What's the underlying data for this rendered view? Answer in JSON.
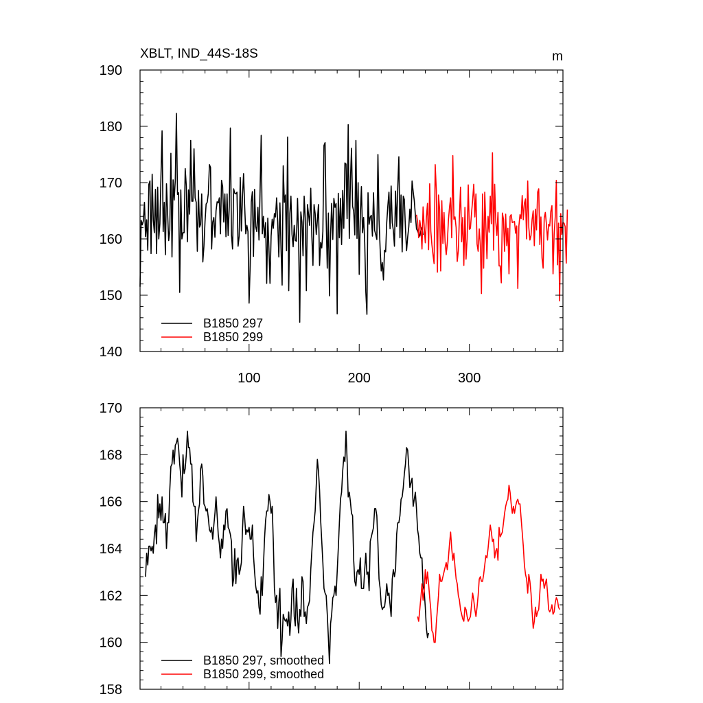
{
  "chart_data": [
    {
      "type": "line",
      "title": "XBLT, IND_44S-18S",
      "units": "m",
      "xlabel": "",
      "ylabel": "",
      "xlim": [
        1,
        385
      ],
      "ylim": [
        140,
        190
      ],
      "xticks": [
        100,
        200,
        300
      ],
      "xtick_labels": [
        "100",
        "200",
        "300"
      ],
      "yticks": [
        140,
        150,
        160,
        170,
        180,
        190
      ],
      "ytick_labels": [
        "140",
        "150",
        "160",
        "170",
        "180",
        "190"
      ],
      "legend_position": "bottom-left",
      "series": [
        {
          "name": "B1850 297",
          "color": "#000000",
          "x_start": 1,
          "values": [
            151.5,
            163.3,
            162.5,
            163.2,
            166.5,
            160.4,
            163.4,
            158.0,
            169.7,
            170.3,
            157.4,
            171.5,
            163.4,
            161.1,
            168.8,
            157.4,
            169.2,
            160.0,
            162.7,
            171.2,
            179.2,
            161.3,
            166.5,
            157.2,
            169.8,
            164.6,
            159.7,
            161.5,
            175.2,
            156.8,
            170.5,
            166.9,
            170.4,
            182.3,
            167.9,
            168.2,
            150.5,
            168.7,
            160.0,
            161.1,
            161.1,
            172.5,
            169.4,
            159.5,
            168.7,
            164.4,
            177.5,
            166.7,
            166.7,
            176.0,
            167.3,
            166.5,
            157.8,
            168.6,
            162.1,
            162.6,
            168.0,
            155.9,
            158.7,
            163.1,
            166.2,
            166.5,
            168.1,
            173.2,
            172.7,
            158.2,
            163.0,
            163.8,
            160.3,
            165.0,
            166.6,
            166.4,
            167.3,
            160.9,
            170.4,
            169.3,
            163.0,
            168.0,
            160.4,
            168.0,
            160.6,
            165.7,
            179.7,
            160.7,
            158.2,
            168.9,
            168.1,
            168.0,
            168.3,
            158.7,
            160.5,
            170.9,
            161.4,
            167.4,
            171.6,
            165.8,
            160.9,
            162.4,
            161.3,
            148.6,
            155.3,
            166.6,
            168.4,
            156.9,
            168.8,
            162.2,
            161.3,
            165.6,
            159.8,
            168.7,
            178.4,
            160.9,
            164.0,
            160.2,
            162.9,
            152.1,
            163.7,
            158.3,
            152.1,
            160.5,
            163.5,
            161.9,
            164.5,
            163.9,
            167.3,
            163.0,
            156.8,
            166.4,
            158.4,
            151.8,
            173.0,
            166.5,
            167.8,
            157.9,
            178.1,
            150.8,
            164.5,
            167.6,
            160.8,
            158.6,
            162.4,
            159.7,
            159.6,
            167.2,
            159.9,
            145.2,
            164.8,
            163.0,
            157.0,
            167.6,
            163.7,
            150.8,
            166.1,
            164.4,
            162.4,
            169.0,
            160.4,
            155.3,
            166.1,
            164.5,
            160.8,
            163.3,
            166.1,
            155.3,
            159.4,
            158.4,
            161.3,
            176.6,
            177.1,
            163.6,
            154.8,
            164.6,
            149.9,
            160.8,
            166.3,
            159.9,
            167.2,
            165.6,
            166.3,
            146.7,
            168.1,
            160.2,
            167.2,
            159.0,
            168.6,
            161.9,
            173.5,
            173.3,
            163.6,
            180.3,
            160.1,
            170.3,
            176.1,
            165.8,
            164.9,
            160.7,
            177.5,
            160.1,
            170.0,
            153.7,
            164.0,
            169.3,
            161.1,
            163.8,
            159.4,
            150.6,
            146.6,
            168.2,
            162.6,
            163.9,
            164.2,
            160.5,
            168.2,
            161.5,
            160.8,
            159.9,
            175.0,
            163.4,
            158.3,
            154.3,
            155.8,
            152.7,
            158.0,
            157.7,
            162.9,
            165.9,
            168.3,
            161.8,
            169.4,
            162.9,
            161.5,
            158.7,
            168.5,
            162.2,
            169.2,
            174.6,
            160.2,
            167.8,
            157.7,
            167.6,
            167.0,
            161.8,
            157.9,
            160.3,
            162.1,
            165.3,
            162.9,
            170.3,
            168.4,
            166.8,
            164.2,
            161.8,
            161.4,
            160.9,
            160.5,
            161.5,
            162.0,
            160.7
          ]
        },
        {
          "name": "B1850 299",
          "color": "#ff0000",
          "x_start": 252,
          "values": [
            164.3,
            163.1,
            160.2,
            163.3,
            161.9,
            158.2,
            165.7,
            162.2,
            159.3,
            163.8,
            166.3,
            158.1,
            169.8,
            161.4,
            159.0,
            157.2,
            155.6,
            173.2,
            168.7,
            154.1,
            167.8,
            165.3,
            154.3,
            166.8,
            159.2,
            164.7,
            159.4,
            157.2,
            159.3,
            163.3,
            165.6,
            167.3,
            160.2,
            174.8,
            163.5,
            163.9,
            162.0,
            156.0,
            157.9,
            164.1,
            169.2,
            159.5,
            163.8,
            155.3,
            165.6,
            156.4,
            160.1,
            169.6,
            161.7,
            161.9,
            164.6,
            166.9,
            169.7,
            163.9,
            168.0,
            159.1,
            157.8,
            161.8,
            158.8,
            150.3,
            168.0,
            154.8,
            168.3,
            162.3,
            156.5,
            164.0,
            161.2,
            167.6,
            162.7,
            175.3,
            158.0,
            169.7,
            163.0,
            160.6,
            164.7,
            155.2,
            155.2,
            152.2,
            164.6,
            163.5,
            157.8,
            164.4,
            158.8,
            161.9,
            153.8,
            164.0,
            164.3,
            162.9,
            163.0,
            163.1,
            161.0,
            162.3,
            151.2,
            162.3,
            164.3,
            163.6,
            167.7,
            163.4,
            166.3,
            167.1,
            160.0,
            170.3,
            162.0,
            159.8,
            160.6,
            163.5,
            165.0,
            158.8,
            165.3,
            161.6,
            168.3,
            168.9,
            159.0,
            163.9,
            156.6,
            154.8,
            163.7,
            164.7,
            162.6,
            159.8,
            162.6,
            162.3,
            164.9,
            165.9,
            153.8,
            160.8,
            163.9,
            170.4,
            155.4,
            162.8,
            149.0,
            164.5,
            160.8,
            162.9,
            162.8,
            162.2,
            155.7,
            165.2
          ]
        }
      ]
    },
    {
      "type": "line",
      "title": "",
      "xlabel": "",
      "ylabel": "",
      "xlim": [
        1,
        385
      ],
      "ylim": [
        158,
        170
      ],
      "xticks": [
        100,
        200,
        300
      ],
      "yticks": [
        158,
        160,
        162,
        164,
        166,
        168,
        170
      ],
      "ytick_labels": [
        "158",
        "160",
        "162",
        "164",
        "166",
        "168",
        "170"
      ],
      "legend_position": "bottom-left",
      "series": [
        {
          "name": "B1850 297, smoothed",
          "color": "#000000",
          "x_start": 6,
          "values": [
            162.8,
            163.8,
            163.3,
            164.1,
            164.1,
            163.9,
            164.1,
            163.8,
            164.6,
            165.0,
            164.2,
            166.3,
            165.3,
            165.9,
            165.2,
            166.2,
            165.1,
            165.1,
            165.5,
            164.0,
            165.1,
            165.1,
            166.5,
            167.5,
            167.6,
            168.2,
            167.6,
            168.4,
            168.5,
            168.7,
            168.3,
            167.6,
            167.1,
            166.2,
            168.0,
            167.2,
            167.4,
            168.0,
            169.0,
            168.3,
            168.3,
            167.6,
            167.6,
            166.0,
            165.8,
            165.8,
            164.3,
            165.1,
            165.6,
            165.9,
            167.4,
            167.6,
            167.1,
            165.9,
            165.8,
            165.6,
            165.7,
            165.3,
            164.8,
            164.7,
            164.9,
            164.4,
            165.0,
            165.5,
            166.2,
            165.4,
            164.6,
            164.2,
            163.6,
            164.4,
            164.0,
            165.0,
            164.8,
            165.6,
            165.7,
            164.9,
            164.8,
            164.6,
            164.3,
            162.4,
            162.7,
            164.0,
            162.5,
            163.5,
            163.6,
            162.9,
            163.1,
            163.4,
            164.8,
            165.8,
            165.3,
            164.6,
            164.8,
            164.7,
            164.9,
            164.4,
            164.4,
            165.0,
            163.7,
            163.0,
            162.4,
            162.1,
            162.2,
            161.5,
            161.2,
            162.8,
            162.0,
            163.2,
            164.4,
            165.2,
            165.6,
            165.6,
            166.3,
            166.0,
            165.5,
            165.8,
            164.3,
            162.3,
            161.7,
            162.0,
            160.6,
            161.7,
            162.3,
            159.4,
            160.1,
            161.2,
            161.0,
            160.9,
            161.0,
            160.7,
            161.3,
            160.3,
            161.0,
            162.3,
            162.7,
            161.1,
            160.7,
            162.3,
            161.0,
            160.4,
            161.4,
            161.1,
            162.8,
            162.6,
            161.1,
            161.3,
            160.8,
            161.5,
            161.6,
            161.8,
            163.1,
            163.9,
            164.7,
            165.1,
            165.6,
            166.7,
            167.8,
            167.3,
            166.5,
            165.2,
            164.3,
            163.4,
            162.3,
            162.1,
            162.0,
            161.2,
            160.2,
            159.1,
            160.8,
            161.2,
            161.9,
            162.0,
            162.4,
            162.0,
            163.0,
            164.0,
            165.1,
            166.1,
            166.4,
            167.3,
            167.9,
            167.7,
            169.0,
            167.8,
            166.2,
            166.4,
            166.0,
            165.5,
            165.4,
            163.5,
            162.6,
            162.4,
            163.0,
            163.1,
            162.9,
            163.6,
            162.3,
            162.3,
            162.3,
            163.1,
            163.8,
            162.9,
            163.0,
            162.2,
            164.3,
            164.5,
            164.7,
            164.9,
            165.7,
            165.7,
            165.4,
            164.2,
            162.7,
            162.3,
            161.6,
            161.4,
            161.5,
            161.5,
            161.9,
            162.5,
            162.0,
            162.1,
            161.6,
            161.1,
            162.7,
            163.1,
            162.8,
            163.1,
            164.6,
            165.1,
            165.1,
            165.4,
            166.1,
            166.2,
            166.6,
            167.2,
            167.6,
            168.3,
            168.2,
            167.5,
            166.6,
            166.8,
            167.0,
            165.8,
            166.1,
            166.4,
            165.7,
            164.8,
            164.5,
            163.8,
            163.6,
            163.6,
            162.4,
            162.2,
            161.5,
            160.6,
            160.2,
            160.4
          ]
        },
        {
          "name": "B1850 299, smoothed",
          "color": "#ff0000",
          "x_start": 253,
          "values": [
            161.1,
            160.9,
            161.4,
            161.9,
            162.5,
            161.8,
            162.2,
            163.1,
            162.5,
            163.0,
            162.5,
            161.9,
            161.4,
            160.5,
            160.4,
            160.0,
            160.0,
            160.8,
            161.4,
            162.0,
            162.9,
            162.6,
            162.6,
            162.8,
            163.0,
            163.2,
            163.4,
            163.1,
            163.6,
            164.2,
            164.7,
            164.0,
            163.5,
            163.8,
            163.2,
            162.7,
            162.5,
            162.0,
            161.8,
            161.4,
            161.2,
            161.0,
            160.9,
            161.5,
            161.4,
            161.1,
            160.9,
            161.0,
            161.1,
            161.6,
            162.1,
            161.8,
            161.4,
            161.1,
            161.5,
            162.0,
            162.7,
            162.8,
            162.6,
            162.6,
            162.9,
            163.3,
            163.7,
            163.6,
            164.0,
            164.5,
            165.0,
            164.7,
            164.3,
            164.4,
            163.6,
            163.9,
            164.0,
            163.5,
            164.9,
            164.5,
            164.6,
            164.7,
            165.1,
            165.5,
            165.8,
            166.0,
            166.1,
            166.7,
            166.4,
            165.9,
            165.5,
            165.8,
            165.5,
            165.8,
            166.0,
            166.1,
            165.9,
            165.9,
            165.3,
            164.7,
            164.1,
            163.3,
            162.9,
            162.7,
            162.1,
            162.9,
            162.6,
            162.1,
            161.3,
            160.6,
            160.9,
            161.5,
            161.1,
            161.3,
            161.4,
            162.1,
            162.9,
            162.6,
            162.7,
            162.3,
            162.5,
            162.7,
            162.1,
            161.4,
            161.3,
            161.4,
            161.6,
            161.2,
            161.3,
            161.7,
            161.9,
            161.8,
            161.5,
            161.4
          ]
        }
      ]
    }
  ]
}
